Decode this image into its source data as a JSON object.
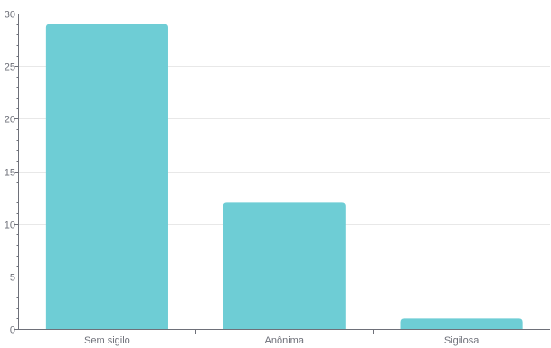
{
  "chart_data": {
    "type": "bar",
    "categories": [
      "Sem sigilo",
      "Anônima",
      "Sigilosa"
    ],
    "values": [
      29,
      12,
      1
    ],
    "ylim": [
      0,
      30
    ],
    "yticks": [
      0,
      5,
      10,
      15,
      20,
      25,
      30
    ],
    "grid": true,
    "title": "",
    "xlabel": "",
    "ylabel": "",
    "colors": {
      "bar": "#6ecdd5",
      "grid": "#e8e8e8",
      "axis": "#6e7079",
      "text": "#6e7079"
    }
  }
}
